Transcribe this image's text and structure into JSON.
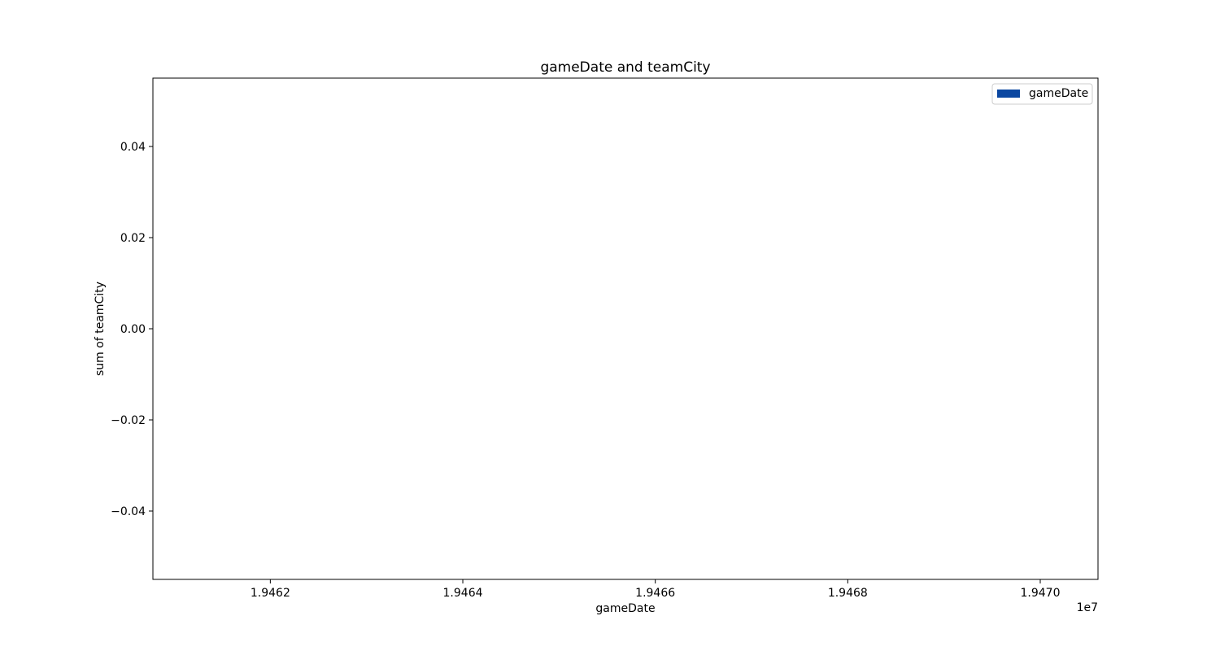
{
  "chart_data": {
    "type": "bar",
    "title": "gameDate and teamCity",
    "xlabel": "gameDate",
    "ylabel": "sum of teamCity",
    "x_offset_label": "1e7",
    "x_ticks": [
      19462000,
      19464000,
      19466000,
      19468000,
      19470000
    ],
    "x_tick_labels": [
      "1.9462",
      "1.9464",
      "1.9466",
      "1.9468",
      "1.9470"
    ],
    "y_ticks": [
      0.04,
      0.02,
      0.0,
      -0.02,
      -0.04
    ],
    "y_tick_labels": [
      "0.04",
      "0.02",
      "0.00",
      "−0.02",
      "−0.04"
    ],
    "xlim": [
      19460780,
      19470600
    ],
    "ylim": [
      -0.055,
      0.055
    ],
    "grid": false,
    "legend_position": "top-right",
    "series": [
      {
        "name": "gameDate",
        "color": "#0b47a1",
        "x": [],
        "values": []
      }
    ]
  }
}
